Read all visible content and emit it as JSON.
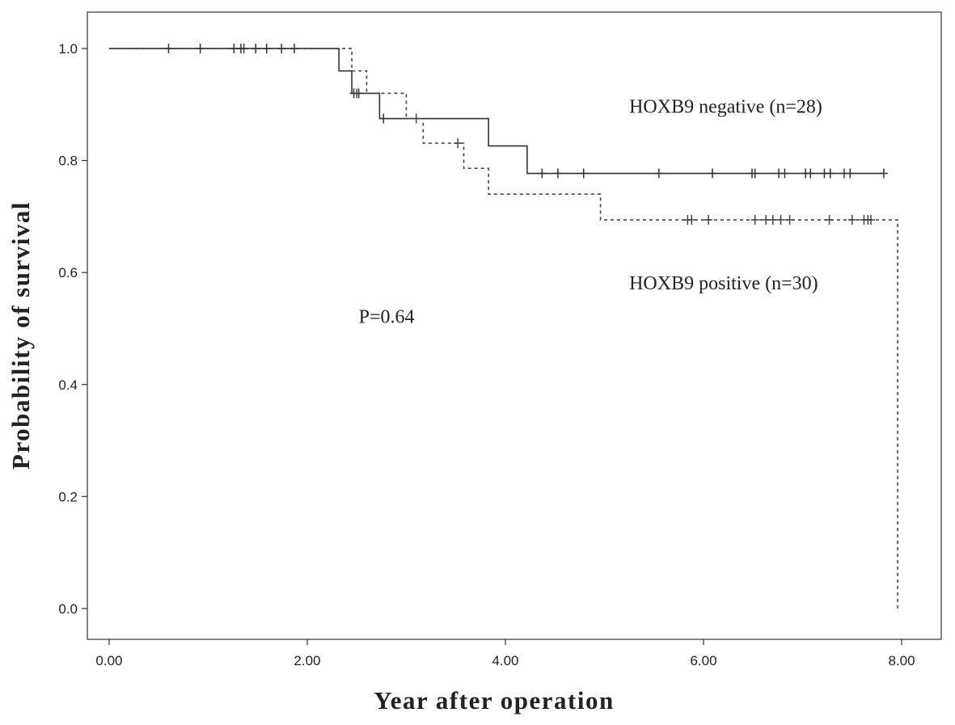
{
  "chart_data": {
    "type": "line",
    "subtype": "kaplan-meier",
    "title": "",
    "xlabel": "Year after operation",
    "ylabel": "Probability of survival",
    "xlim": [
      -0.22,
      8.4
    ],
    "ylim": [
      -0.055,
      1.065
    ],
    "x_ticks": [
      0,
      2,
      4,
      6,
      8
    ],
    "x_tick_labels": [
      "0.00",
      "2.00",
      "4.00",
      "6.00",
      "8.00"
    ],
    "y_ticks": [
      0,
      0.2,
      0.4,
      0.6,
      0.8,
      1.0
    ],
    "y_tick_labels": [
      "0.0",
      "0.2",
      "0.4",
      "0.6",
      "0.8",
      "1.0"
    ],
    "grid": false,
    "legend": "none",
    "series": [
      {
        "line_style": "solid",
        "color": "#333333",
        "steps": [
          [
            0,
            1.0
          ],
          [
            2.32,
            0.96
          ],
          [
            2.45,
            0.92
          ],
          [
            2.73,
            0.875
          ],
          [
            3.83,
            0.826
          ],
          [
            4.22,
            0.777
          ],
          [
            7.82,
            0.777
          ]
        ],
        "censored": [
          [
            0.6,
            1.0
          ],
          [
            0.92,
            1.0
          ],
          [
            1.26,
            1.0
          ],
          [
            1.33,
            1.0
          ],
          [
            1.36,
            1.0
          ],
          [
            1.48,
            1.0
          ],
          [
            1.59,
            1.0
          ],
          [
            1.74,
            1.0
          ],
          [
            1.87,
            1.0
          ],
          [
            2.47,
            0.92
          ],
          [
            2.52,
            0.92
          ],
          [
            2.77,
            0.875
          ],
          [
            4.37,
            0.777
          ],
          [
            4.53,
            0.777
          ],
          [
            4.79,
            0.777
          ],
          [
            5.55,
            0.777
          ],
          [
            6.09,
            0.777
          ],
          [
            6.49,
            0.777
          ],
          [
            6.52,
            0.777
          ],
          [
            6.76,
            0.777
          ],
          [
            6.82,
            0.777
          ],
          [
            7.03,
            0.777
          ],
          [
            7.08,
            0.777
          ],
          [
            7.22,
            0.777
          ],
          [
            7.28,
            0.777
          ],
          [
            7.42,
            0.777
          ],
          [
            7.48,
            0.777
          ],
          [
            7.82,
            0.777
          ]
        ]
      },
      {
        "line_style": "dashed",
        "color": "#444444",
        "steps": [
          [
            0,
            1.0
          ],
          [
            2.45,
            0.96
          ],
          [
            2.6,
            0.92
          ],
          [
            3.0,
            0.875
          ],
          [
            3.17,
            0.831
          ],
          [
            3.58,
            0.786
          ],
          [
            3.83,
            0.74
          ],
          [
            4.96,
            0.694
          ],
          [
            7.96,
            0.694
          ],
          [
            7.96,
            0.0
          ]
        ],
        "censored": [
          [
            2.5,
            0.92
          ],
          [
            3.1,
            0.875
          ],
          [
            3.52,
            0.831
          ],
          [
            5.84,
            0.694
          ],
          [
            5.88,
            0.694
          ],
          [
            6.05,
            0.694
          ],
          [
            6.52,
            0.694
          ],
          [
            6.63,
            0.694
          ],
          [
            6.7,
            0.694
          ],
          [
            6.78,
            0.694
          ],
          [
            6.87,
            0.694
          ],
          [
            7.27,
            0.694
          ],
          [
            7.5,
            0.694
          ],
          [
            7.62,
            0.694
          ],
          [
            7.66,
            0.694
          ],
          [
            7.69,
            0.694
          ]
        ]
      }
    ],
    "annotations": [
      {
        "text": "HOXB9 negative (n=28)",
        "x": 5.25,
        "y": 0.885
      },
      {
        "text": "HOXB9 positive (n=30)",
        "x": 5.25,
        "y": 0.57
      },
      {
        "text": "P=0.64",
        "x": 2.52,
        "y": 0.51
      }
    ]
  }
}
